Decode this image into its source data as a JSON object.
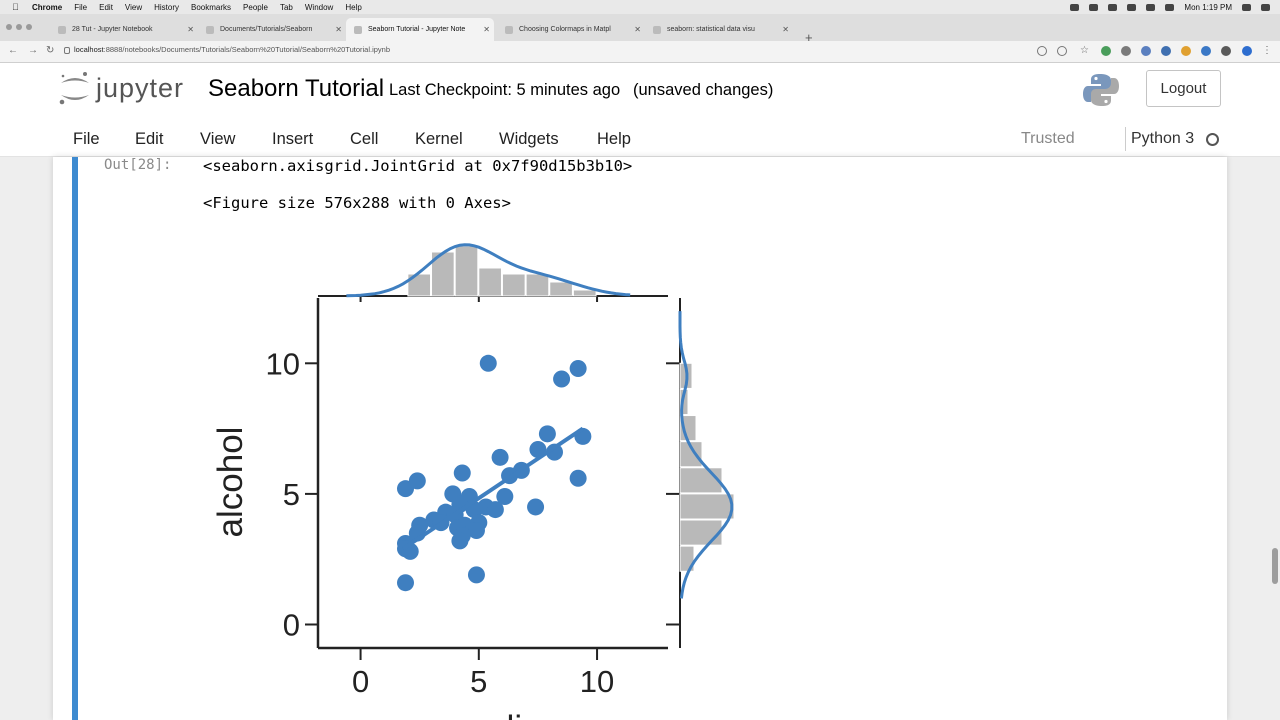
{
  "menubar": {
    "app": "Chrome",
    "items": [
      "File",
      "Edit",
      "View",
      "History",
      "Bookmarks",
      "People",
      "Tab",
      "Window",
      "Help"
    ],
    "clock": "Mon 1:19 PM"
  },
  "tabs": [
    {
      "label": "28 Tut - Jupyter Notebook",
      "active": false
    },
    {
      "label": "Documents/Tutorials/Seaborn",
      "active": false
    },
    {
      "label": "Seaborn Tutorial - Jupyter Note",
      "active": true
    },
    {
      "label": "Choosing Colormaps in Matpl",
      "active": false
    },
    {
      "label": "seaborn: statistical data visu",
      "active": false
    }
  ],
  "toolbar": {
    "url_host": "localhost",
    "url_rest": ":8888/notebooks/Documents/Tutorials/Seaborn%20Tutorial/Seaborn%20Tutorial.ipynb"
  },
  "header": {
    "logo_text": "jupyter",
    "title": "Seaborn Tutorial",
    "checkpoint": "Last Checkpoint: 5 minutes ago",
    "unsaved": "(unsaved changes)",
    "logout_label": "Logout"
  },
  "jmenu": {
    "items": [
      "File",
      "Edit",
      "View",
      "Insert",
      "Cell",
      "Kernel",
      "Widgets",
      "Help"
    ],
    "trusted": "Trusted",
    "kernel": "Python 3"
  },
  "cell": {
    "prompt": "Out[28]:",
    "line1": "<seaborn.axisgrid.JointGrid at 0x7f90d15b3b10>",
    "line2": "<Figure size 576x288 with 0 Axes>"
  },
  "colors": {
    "accent": "#3f7fc0",
    "cell_bar": "#3d8ad0",
    "hist_bar": "#b9b9b9"
  },
  "chart_data": {
    "type": "scatter",
    "xlabel": "speeding",
    "ylabel": "alcohol",
    "xlim": [
      -1.8,
      13.0
    ],
    "ylim": [
      -0.9,
      12.5
    ],
    "xticks": [
      0,
      5,
      10
    ],
    "yticks": [
      0,
      5,
      10
    ],
    "points": [
      [
        5.4,
        10.0
      ],
      [
        9.2,
        9.8
      ],
      [
        8.5,
        9.4
      ],
      [
        7.9,
        7.3
      ],
      [
        9.4,
        7.2
      ],
      [
        7.5,
        6.7
      ],
      [
        8.2,
        6.6
      ],
      [
        5.9,
        6.4
      ],
      [
        6.8,
        5.9
      ],
      [
        6.3,
        5.7
      ],
      [
        4.3,
        5.8
      ],
      [
        9.2,
        5.6
      ],
      [
        2.4,
        5.5
      ],
      [
        1.9,
        5.2
      ],
      [
        3.9,
        5.0
      ],
      [
        4.6,
        4.9
      ],
      [
        6.1,
        4.9
      ],
      [
        4.2,
        4.6
      ],
      [
        5.3,
        4.5
      ],
      [
        7.4,
        4.5
      ],
      [
        3.6,
        4.3
      ],
      [
        4.0,
        4.2
      ],
      [
        4.8,
        4.4
      ],
      [
        5.7,
        4.4
      ],
      [
        3.1,
        4.0
      ],
      [
        2.5,
        3.8
      ],
      [
        3.4,
        3.9
      ],
      [
        4.4,
        3.8
      ],
      [
        5.0,
        3.9
      ],
      [
        4.1,
        3.7
      ],
      [
        4.9,
        3.6
      ],
      [
        2.4,
        3.5
      ],
      [
        4.3,
        3.4
      ],
      [
        1.9,
        3.1
      ],
      [
        4.2,
        3.2
      ],
      [
        1.9,
        2.9
      ],
      [
        2.1,
        2.8
      ],
      [
        4.9,
        1.9
      ],
      [
        1.9,
        1.6
      ]
    ],
    "regression": {
      "x": [
        1.8,
        9.4
      ],
      "y": [
        2.9,
        7.5
      ]
    },
    "x_histogram": {
      "bins": [
        [
          2.0,
          3.0,
          1.1
        ],
        [
          3.0,
          4.0,
          2.2
        ],
        [
          4.0,
          5.0,
          2.5
        ],
        [
          5.0,
          6.0,
          1.4
        ],
        [
          6.0,
          7.0,
          1.1
        ],
        [
          7.0,
          8.0,
          1.1
        ],
        [
          8.0,
          9.0,
          0.7
        ],
        [
          9.0,
          10.0,
          0.3
        ]
      ]
    },
    "y_histogram": {
      "bins": [
        [
          2.0,
          3.0,
          0.7
        ],
        [
          3.0,
          4.0,
          2.1
        ],
        [
          4.0,
          5.0,
          2.7
        ],
        [
          5.0,
          6.0,
          2.1
        ],
        [
          6.0,
          7.0,
          1.1
        ],
        [
          7.0,
          8.0,
          0.8
        ],
        [
          8.0,
          9.0,
          0.4
        ],
        [
          9.0,
          10.0,
          0.6
        ]
      ]
    }
  }
}
